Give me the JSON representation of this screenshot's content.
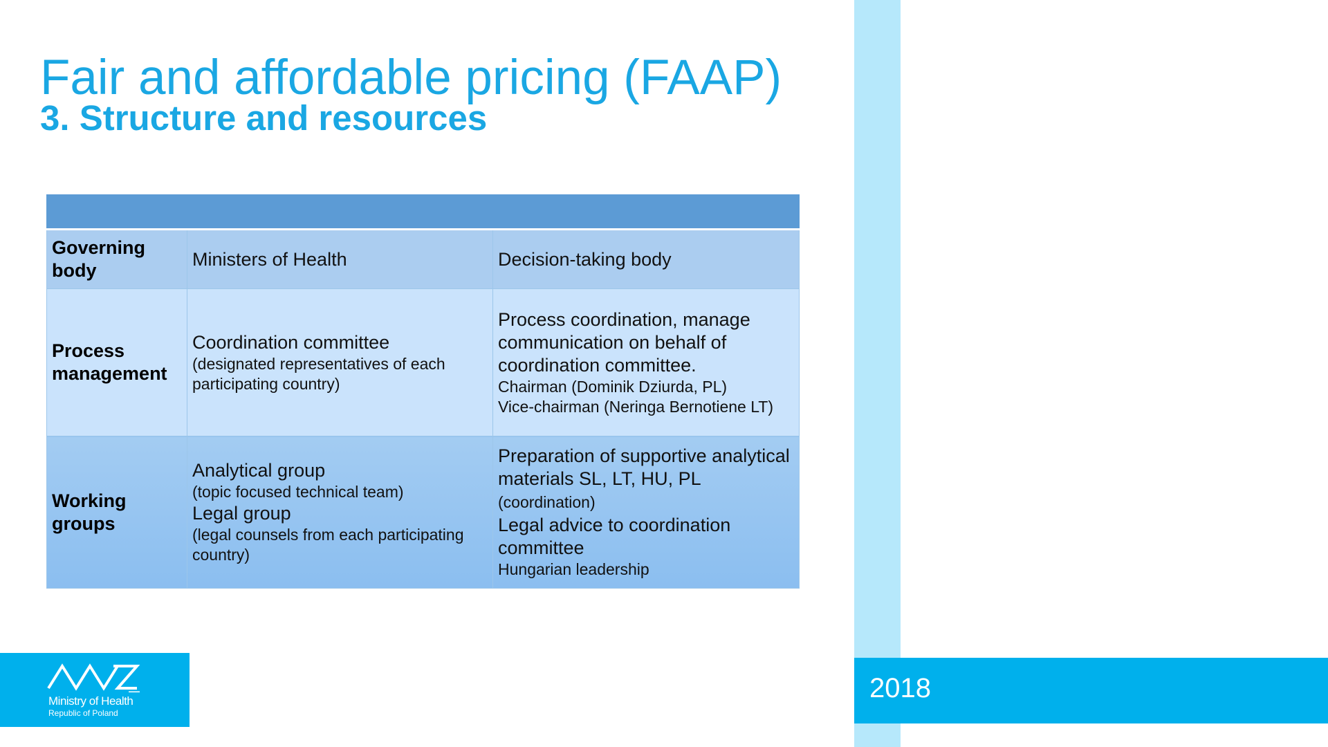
{
  "slide": {
    "title": "Fair and affordable pricing (FAAP)",
    "subtitle": "3. Structure and resources",
    "year": "2018"
  },
  "logo": {
    "name": "Ministry of Health",
    "sub": "Republic of Poland"
  },
  "table": {
    "rows": [
      {
        "label": "Governing body",
        "body_main": "Ministers of Health",
        "role_main": "Decision-taking body"
      },
      {
        "label": "Process management",
        "body_main": "Coordination committee",
        "body_note": "(designated representatives of each participating country)",
        "role_main": "Process coordination, manage communication on behalf of coordination committee.",
        "role_note1": "Chairman (Dominik Dziurda, PL)",
        "role_note2": "Vice-chairman (Neringa Bernotiene LT)"
      },
      {
        "label": "Working groups",
        "body_main1": "Analytical group",
        "body_note1": "(topic focused technical team)",
        "body_main2": "Legal group",
        "body_note2": "(legal counsels from each participating country)",
        "role_main1": "Preparation of supportive analytical materials SL, LT, HU, PL",
        "role_note1": "(coordination)",
        "role_main2": "Legal advice to coordination committee",
        "role_note2": "Hungarian leadership"
      }
    ]
  },
  "colors": {
    "accent": "#1aa7e3",
    "brand_blue": "#00b0ec",
    "stripe": "#b6e8fb",
    "table_header": "#5c9bd5"
  }
}
